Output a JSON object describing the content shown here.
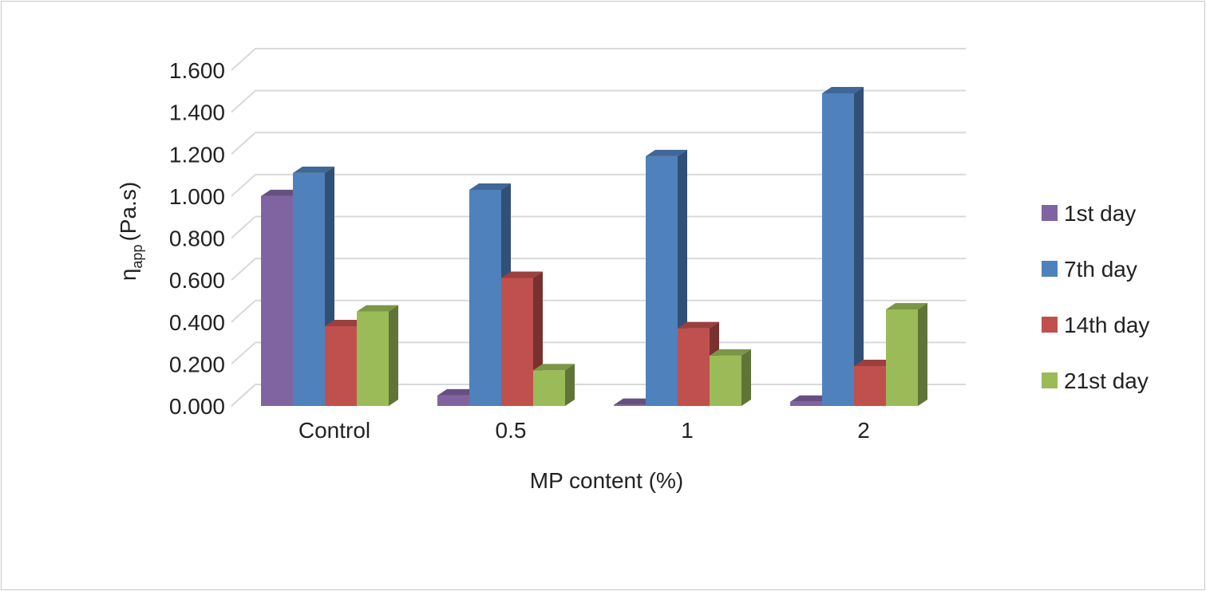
{
  "chart_data": {
    "type": "bar",
    "title": "",
    "xlabel": "MP content (%)",
    "ylabel_main": "η",
    "ylabel_sub": "app",
    "ylabel_rest": "(Pa.s)",
    "ylim": [
      0,
      1.6
    ],
    "yticks": [
      "0.000",
      "0.200",
      "0.400",
      "0.600",
      "0.800",
      "1.000",
      "1.200",
      "1.400",
      "1.600"
    ],
    "categories": [
      "Control",
      "0.5",
      "1",
      "2"
    ],
    "series": [
      {
        "name": "1st day",
        "color": "#8064a2",
        "values": [
          1.0,
          0.05,
          0.005,
          0.02
        ]
      },
      {
        "name": "7th day",
        "color": "#4f81bd",
        "values": [
          1.11,
          1.03,
          1.19,
          1.49
        ]
      },
      {
        "name": "14th day",
        "color": "#c0504d",
        "values": [
          0.38,
          0.61,
          0.37,
          0.19
        ]
      },
      {
        "name": "21st day",
        "color": "#9bbb59",
        "values": [
          0.45,
          0.17,
          0.24,
          0.46
        ]
      }
    ],
    "grid": true,
    "legend_position": "right",
    "bar_style": "3d"
  }
}
